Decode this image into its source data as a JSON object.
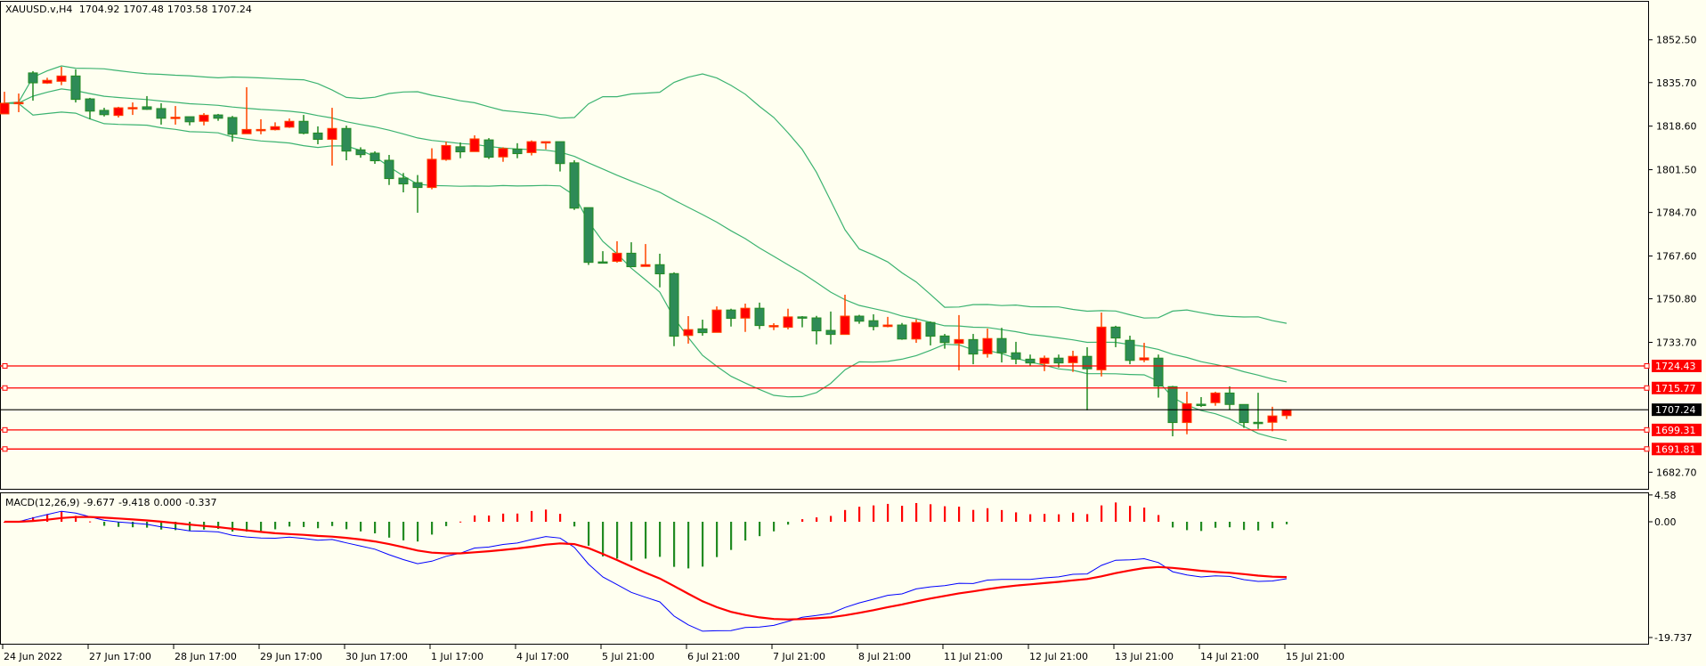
{
  "header": {
    "symbol": "XAUUSD.v,H4",
    "open": "1704.92",
    "high": "1707.48",
    "low": "1703.58",
    "close": "1707.24"
  },
  "macd_header": {
    "label": "MACD(12,26,9)",
    "main": "-9.677",
    "signal": "-9.418",
    "v3": "0.000",
    "v4": "-0.337"
  },
  "colors": {
    "background": "#FFFFF0",
    "bull_body": "#FF0000",
    "bull_border": "#FF4500",
    "bear_body": "#2E8B57",
    "bear_border": "#228B22",
    "bands": "#3CB371",
    "macd_line": "#0000FF",
    "signal_line": "#FF0000",
    "hline": "#FF0000",
    "price_line": "#000000"
  },
  "chart_data": {
    "type": "candlestick",
    "title": "XAUUSD.v,H4",
    "price_ticks": [
      "1852.50",
      "1835.70",
      "1818.60",
      "1801.50",
      "1784.70",
      "1767.60",
      "1750.80",
      "1733.70",
      "1682.70"
    ],
    "ylim": [
      1675.0,
      1855.5
    ],
    "time_labels": [
      "24 Jun 2022",
      "27 Jun 17:00",
      "28 Jun 17:00",
      "29 Jun 17:00",
      "30 Jun 17:00",
      "1 Jul 17:00",
      "4 Jul 17:00",
      "5 Jul 21:00",
      "6 Jul 21:00",
      "7 Jul 21:00",
      "8 Jul 21:00",
      "11 Jul 21:00",
      "12 Jul 21:00",
      "13 Jul 21:00",
      "14 Jul 21:00",
      "15 Jul 21:00"
    ],
    "time_label_every_n_bars": 6,
    "ohlc": [
      [
        1823.4,
        1832.1,
        1823.4,
        1827.6
      ],
      [
        1827.9,
        1831.4,
        1824.1,
        1827.9
      ],
      [
        1839.5,
        1840.2,
        1828.6,
        1835.6
      ],
      [
        1835.5,
        1837.6,
        1835.2,
        1836.6
      ],
      [
        1836.2,
        1841.9,
        1834.7,
        1838.3
      ],
      [
        1838.3,
        1840.9,
        1827.9,
        1829.1
      ],
      [
        1829.3,
        1829.7,
        1821.3,
        1824.5
      ],
      [
        1824.8,
        1825.8,
        1822.4,
        1823.1
      ],
      [
        1822.8,
        1826.2,
        1822.0,
        1825.8
      ],
      [
        1825.8,
        1827.9,
        1823.0,
        1825.9
      ],
      [
        1826.2,
        1830.4,
        1825.0,
        1825.2
      ],
      [
        1825.5,
        1827.6,
        1819.2,
        1821.7
      ],
      [
        1822.1,
        1826.5,
        1819.2,
        1822.1
      ],
      [
        1822.3,
        1822.3,
        1818.9,
        1820.3
      ],
      [
        1820.5,
        1823.7,
        1818.9,
        1822.9
      ],
      [
        1823.0,
        1823.4,
        1820.7,
        1821.7
      ],
      [
        1822.0,
        1822.6,
        1812.5,
        1815.4
      ],
      [
        1815.6,
        1833.9,
        1815.6,
        1817.3
      ],
      [
        1817.3,
        1821.3,
        1815.4,
        1817.3
      ],
      [
        1817.2,
        1820.1,
        1816.9,
        1818.4
      ],
      [
        1818.2,
        1821.6,
        1817.9,
        1820.5
      ],
      [
        1820.5,
        1823.0,
        1815.4,
        1815.8
      ],
      [
        1815.9,
        1818.5,
        1811.5,
        1813.4
      ],
      [
        1813.4,
        1825.8,
        1803.1,
        1817.7
      ],
      [
        1817.7,
        1818.8,
        1805.2,
        1808.8
      ],
      [
        1809.3,
        1810.3,
        1806.2,
        1807.4
      ],
      [
        1808.0,
        1808.7,
        1803.8,
        1805.0
      ],
      [
        1805.2,
        1807.3,
        1795.5,
        1798.0
      ],
      [
        1798.2,
        1800.2,
        1792.6,
        1795.9
      ],
      [
        1796.4,
        1799.4,
        1784.6,
        1794.5
      ],
      [
        1794.5,
        1809.9,
        1793.8,
        1805.6
      ],
      [
        1805.5,
        1812.5,
        1805.0,
        1811.0
      ],
      [
        1810.5,
        1812.2,
        1806.0,
        1808.5
      ],
      [
        1808.6,
        1815.0,
        1808.6,
        1813.6
      ],
      [
        1813.2,
        1813.9,
        1805.7,
        1806.4
      ],
      [
        1806.5,
        1810.3,
        1804.6,
        1809.8
      ],
      [
        1809.6,
        1811.9,
        1806.0,
        1807.8
      ],
      [
        1808.2,
        1813.0,
        1807.1,
        1812.5
      ],
      [
        1812.5,
        1812.6,
        1809.5,
        1812.5
      ],
      [
        1812.5,
        1812.5,
        1800.8,
        1803.9
      ],
      [
        1804.2,
        1805.2,
        1785.7,
        1786.4
      ],
      [
        1786.6,
        1786.6,
        1764.1,
        1765.1
      ],
      [
        1765.3,
        1769.5,
        1764.8,
        1764.8
      ],
      [
        1765.5,
        1773.4,
        1765.0,
        1768.7
      ],
      [
        1768.7,
        1773.0,
        1763.4,
        1763.4
      ],
      [
        1763.5,
        1772.3,
        1763.5,
        1764.2
      ],
      [
        1764.2,
        1768.5,
        1755.3,
        1760.6
      ],
      [
        1760.7,
        1761.2,
        1732.2,
        1736.1
      ],
      [
        1736.4,
        1744.0,
        1733.2,
        1738.7
      ],
      [
        1739.0,
        1742.6,
        1736.3,
        1737.5
      ],
      [
        1737.6,
        1747.8,
        1737.6,
        1746.4
      ],
      [
        1746.4,
        1746.9,
        1739.9,
        1743.1
      ],
      [
        1743.2,
        1748.9,
        1737.8,
        1747.1
      ],
      [
        1747.1,
        1749.3,
        1738.9,
        1740.3
      ],
      [
        1740.2,
        1741.2,
        1738.5,
        1740.3
      ],
      [
        1739.6,
        1746.9,
        1738.8,
        1743.7
      ],
      [
        1743.7,
        1744.0,
        1739.6,
        1743.2
      ],
      [
        1743.3,
        1744.1,
        1732.9,
        1738.2
      ],
      [
        1738.4,
        1745.8,
        1732.9,
        1736.8
      ],
      [
        1736.8,
        1752.4,
        1736.8,
        1744.0
      ],
      [
        1744.0,
        1744.5,
        1741.0,
        1742.0
      ],
      [
        1742.2,
        1744.7,
        1738.4,
        1739.9
      ],
      [
        1739.9,
        1743.7,
        1739.6,
        1740.5
      ],
      [
        1740.5,
        1741.3,
        1734.7,
        1735.0
      ],
      [
        1735.0,
        1742.7,
        1733.5,
        1741.5
      ],
      [
        1741.5,
        1741.9,
        1732.5,
        1736.1
      ],
      [
        1736.2,
        1737.0,
        1731.2,
        1733.6
      ],
      [
        1733.3,
        1744.4,
        1722.7,
        1734.8
      ],
      [
        1734.8,
        1737.0,
        1725.1,
        1729.1
      ],
      [
        1729.2,
        1739.1,
        1727.7,
        1735.2
      ],
      [
        1735.2,
        1739.4,
        1725.8,
        1729.6
      ],
      [
        1729.6,
        1733.9,
        1725.1,
        1727.1
      ],
      [
        1727.1,
        1728.9,
        1724.4,
        1725.6
      ],
      [
        1725.4,
        1728.5,
        1722.4,
        1727.5
      ],
      [
        1727.5,
        1728.9,
        1723.8,
        1725.6
      ],
      [
        1725.7,
        1730.4,
        1722.1,
        1728.2
      ],
      [
        1728.2,
        1731.8,
        1707.0,
        1723.3
      ],
      [
        1722.9,
        1745.4,
        1720.3,
        1739.7
      ],
      [
        1739.7,
        1740.2,
        1731.8,
        1735.4
      ],
      [
        1734.5,
        1736.3,
        1725.1,
        1726.6
      ],
      [
        1726.8,
        1733.5,
        1725.9,
        1727.6
      ],
      [
        1727.5,
        1728.9,
        1712.0,
        1716.5
      ],
      [
        1716.3,
        1716.6,
        1696.8,
        1702.2
      ],
      [
        1702.2,
        1714.3,
        1697.6,
        1709.6
      ],
      [
        1709.4,
        1712.2,
        1708.3,
        1709.2
      ],
      [
        1710.0,
        1714.3,
        1708.8,
        1713.8
      ],
      [
        1713.8,
        1716.4,
        1707.1,
        1709.3
      ],
      [
        1709.3,
        1709.3,
        1700.1,
        1702.2
      ],
      [
        1702.3,
        1713.9,
        1699.7,
        1702.2
      ],
      [
        1702.3,
        1708.4,
        1698.8,
        1704.8
      ],
      [
        1704.92,
        1707.48,
        1703.58,
        1707.24
      ]
    ],
    "bollinger": {
      "period": 20,
      "deviation": 2
    },
    "horizontal_levels": [
      {
        "value": 1724.43,
        "label": "1724.43",
        "color": "#FF0000"
      },
      {
        "value": 1715.77,
        "label": "1715.77",
        "color": "#FF0000"
      },
      {
        "value": 1699.31,
        "label": "1699.31",
        "color": "#FF0000"
      },
      {
        "value": 1691.81,
        "label": "1691.81",
        "color": "#FF0000"
      }
    ],
    "current_price": {
      "value": 1707.24,
      "label": "1707.24"
    },
    "macd": {
      "fast": 12,
      "slow": 26,
      "signal": 9,
      "ticks": [
        "4.58",
        "0.00",
        "-19.737"
      ],
      "ylim": [
        -19.737,
        4.58
      ]
    }
  }
}
